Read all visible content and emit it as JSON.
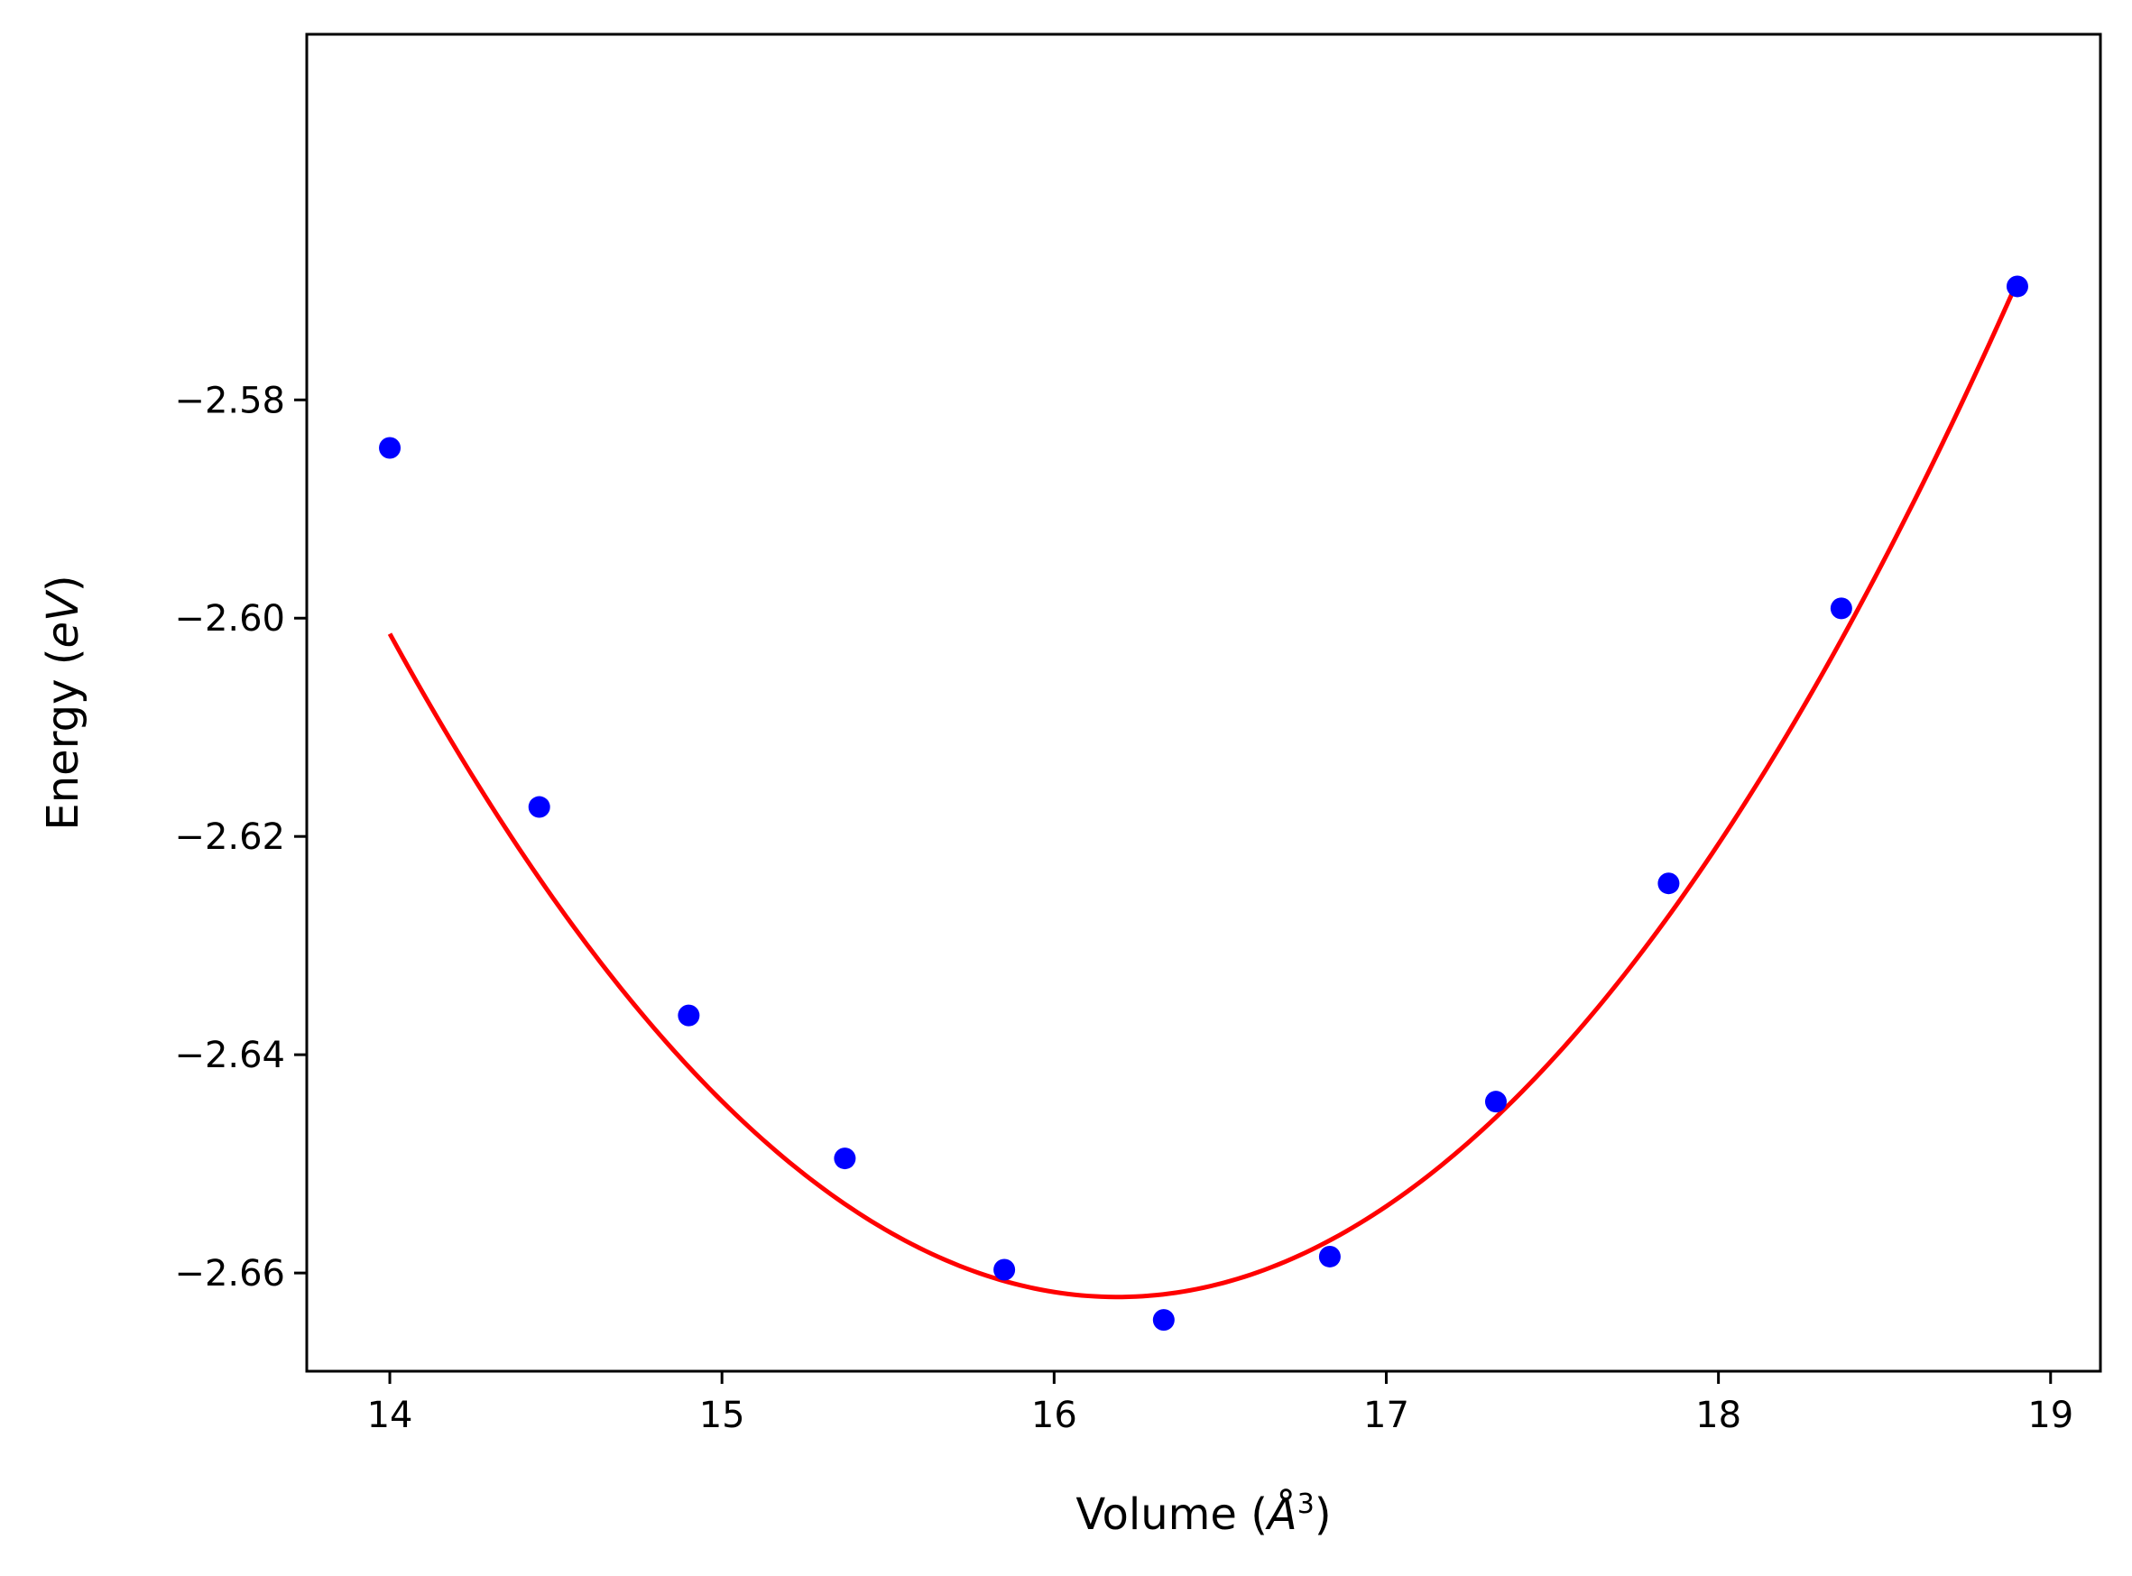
{
  "chart_data": {
    "type": "scatter",
    "title": "",
    "xlabel": "Volume (Å³)",
    "xlabel_parts": {
      "prefix": "Volume (",
      "unit": "Å",
      "exp": "3",
      "suffix": ")"
    },
    "ylabel": "Energy (eV)",
    "ylabel_parts": {
      "prefix": "Energy (",
      "unit": "eV",
      "suffix": ")"
    },
    "xlim": [
      13.75,
      19.15
    ],
    "ylim": [
      -2.669,
      -2.5465
    ],
    "xticks": [
      14,
      15,
      16,
      17,
      18,
      19
    ],
    "xtick_labels": [
      "14",
      "15",
      "16",
      "17",
      "18",
      "19"
    ],
    "yticks": [
      -2.58,
      -2.6,
      -2.62,
      -2.64,
      -2.66
    ],
    "ytick_labels": [
      "−2.58",
      "−2.60",
      "−2.62",
      "−2.64",
      "−2.66"
    ],
    "grid": false,
    "series": [
      {
        "kind": "points",
        "color": "#0000ff",
        "x": [
          14.0,
          14.45,
          14.9,
          15.37,
          15.85,
          16.33,
          16.83,
          17.33,
          17.85,
          18.37,
          18.9
        ],
        "y": [
          -2.5844,
          -2.6173,
          -2.6364,
          -2.6495,
          -2.6597,
          -2.6643,
          -2.6585,
          -2.6443,
          -2.6243,
          -2.5991,
          -2.5696
        ]
      },
      {
        "kind": "fit-curve",
        "color": "#ff0000",
        "x_range": [
          14.0,
          18.9
        ],
        "fit": {
          "a": 0.01267,
          "x0": 16.19,
          "c": -2.6622
        }
      }
    ]
  }
}
